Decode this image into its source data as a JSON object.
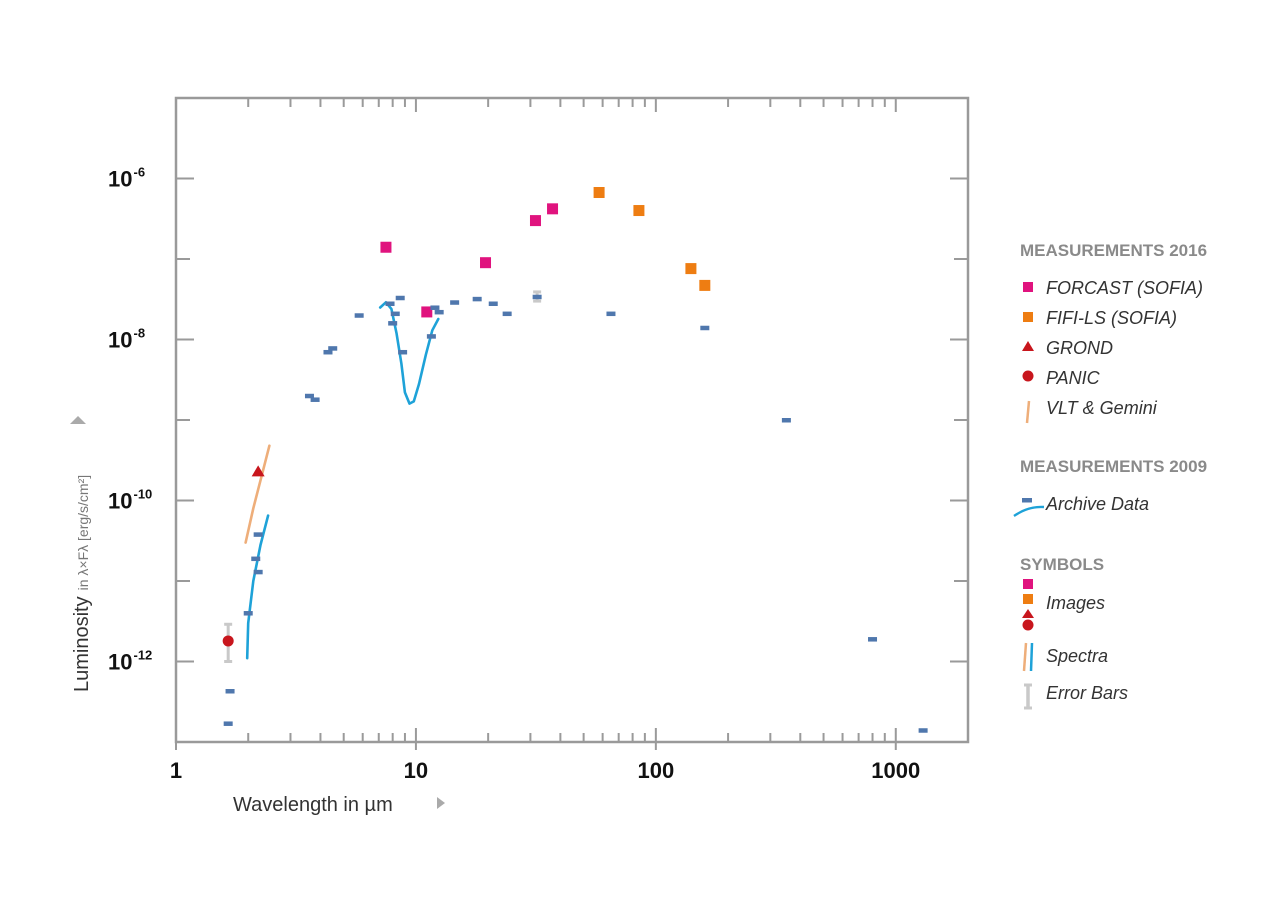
{
  "colors": {
    "forcast": "#e0137e",
    "fifi": "#ee7d12",
    "grond": "#c8161d",
    "panic": "#c8161d",
    "vlt": "#eeae7a",
    "archive": "#4f77ad",
    "spectrum": "#1ea2d8",
    "errorbar": "#c9c9c9",
    "frame": "#9a9a9a",
    "section": "#8a8a8a"
  },
  "chart_data": {
    "type": "scatter",
    "xscale": "log",
    "yscale": "log",
    "xlim": [
      1,
      2000
    ],
    "ylim": [
      1e-13,
      1e-05
    ],
    "xlabel": "Wavelength in µm",
    "ylabel": "Luminosity",
    "ylabel_units": "in λ×Fλ [erg/s/cm²]",
    "xticks": [
      {
        "value": 1,
        "label": "1"
      },
      {
        "value": 10,
        "label": "10"
      },
      {
        "value": 100,
        "label": "100"
      },
      {
        "value": 1000,
        "label": "1000"
      }
    ],
    "yticks": [
      {
        "value": 1e-12,
        "base": "10",
        "exp": "-12"
      },
      {
        "value": 1e-10,
        "base": "10",
        "exp": "-10"
      },
      {
        "value": 1e-08,
        "base": "10",
        "exp": "-8"
      },
      {
        "value": 1e-06,
        "base": "10",
        "exp": "-6"
      }
    ],
    "series": [
      {
        "key": "forcast",
        "marker": "square",
        "points": [
          [
            7.5,
            1.4e-07
          ],
          [
            11.1,
            2.2e-08
          ],
          [
            19.5,
            9e-08
          ],
          [
            31.5,
            3e-07
          ],
          [
            37.1,
            4.2e-07
          ]
        ]
      },
      {
        "key": "fifi",
        "marker": "square",
        "points": [
          [
            58,
            6.7e-07
          ],
          [
            85,
            4e-07
          ],
          [
            140,
            7.6e-08
          ],
          [
            160,
            4.7e-08
          ]
        ]
      },
      {
        "key": "grond",
        "marker": "triangle",
        "points": [
          [
            2.2,
            2.3e-10
          ]
        ]
      },
      {
        "key": "panic",
        "marker": "circle",
        "points": [
          [
            1.65,
            1.8e-12
          ]
        ],
        "error": [
          [
            1.65,
            1e-12,
            2.9e-12
          ]
        ]
      },
      {
        "key": "archive",
        "marker": "dash",
        "points": [
          [
            1.65,
            1.7e-13
          ],
          [
            1.68,
            4.3e-13
          ],
          [
            2.0,
            4e-12
          ],
          [
            2.15,
            1.9e-11
          ],
          [
            2.2,
            1.3e-11
          ],
          [
            2.2,
            3.8e-11
          ],
          [
            3.6,
            2e-09
          ],
          [
            3.8,
            1.8e-09
          ],
          [
            4.3,
            7e-09
          ],
          [
            4.5,
            7.8e-09
          ],
          [
            5.8,
            2e-08
          ],
          [
            7.8,
            2.8e-08
          ],
          [
            8.0,
            1.6e-08
          ],
          [
            8.2,
            2.1e-08
          ],
          [
            8.6,
            3.3e-08
          ],
          [
            8.8,
            7e-09
          ],
          [
            11.6,
            1.1e-08
          ],
          [
            12.0,
            2.5e-08
          ],
          [
            12.5,
            2.2e-08
          ],
          [
            14.5,
            2.9e-08
          ],
          [
            18,
            3.2e-08
          ],
          [
            21,
            2.8e-08
          ],
          [
            24,
            2.1e-08
          ],
          [
            32,
            3.4e-08
          ],
          [
            65,
            2.1e-08
          ],
          [
            160,
            1.4e-08
          ],
          [
            350,
            1e-09
          ],
          [
            800,
            1.9e-12
          ],
          [
            1300,
            1.4e-13
          ]
        ],
        "error": [
          [
            32,
            3e-08,
            3.9e-08
          ]
        ]
      }
    ],
    "spectra": [
      {
        "key": "vlt",
        "points": [
          [
            1.95,
            3e-11
          ],
          [
            2.1,
            8e-11
          ],
          [
            2.3,
            2.3e-10
          ],
          [
            2.45,
            4.8e-10
          ]
        ]
      },
      {
        "key": "spectrum",
        "points": [
          [
            1.98,
            1.1e-12
          ],
          [
            2.0,
            3e-12
          ],
          [
            2.1,
            1e-11
          ],
          [
            2.25,
            2.8e-11
          ],
          [
            2.42,
            6.5e-11
          ]
        ]
      },
      {
        "key": "spectrum",
        "points": [
          [
            7.1,
            2.5e-08
          ],
          [
            7.5,
            2.9e-08
          ],
          [
            7.9,
            2.4e-08
          ],
          [
            8.3,
            1.2e-08
          ],
          [
            8.7,
            5e-09
          ],
          [
            9.0,
            2.2e-09
          ],
          [
            9.4,
            1.6e-09
          ],
          [
            9.8,
            1.7e-09
          ],
          [
            10.3,
            2.8e-09
          ],
          [
            11,
            6.5e-09
          ],
          [
            11.7,
            1.3e-08
          ],
          [
            12.4,
            1.8e-08
          ]
        ]
      }
    ]
  },
  "legend": {
    "sections": [
      {
        "title": "MEASUREMENTS 2016",
        "items": [
          {
            "label": "FORCAST (SOFIA)",
            "symbol": "forcast"
          },
          {
            "label": "FIFI-LS (SOFIA)",
            "symbol": "fifi"
          },
          {
            "label": "GROND",
            "symbol": "grond"
          },
          {
            "label": "PANIC",
            "symbol": "panic"
          },
          {
            "label": "VLT & Gemini",
            "symbol": "vlt"
          }
        ]
      },
      {
        "title": "MEASUREMENTS 2009",
        "items": [
          {
            "label": "Archive Data",
            "symbol": "archive"
          }
        ]
      },
      {
        "title": "SYMBOLS",
        "items": [
          {
            "label": "Images",
            "symbol": "images"
          },
          {
            "label": "Spectra",
            "symbol": "spectra"
          },
          {
            "label": "Error Bars",
            "symbol": "errorbars"
          }
        ]
      }
    ]
  }
}
